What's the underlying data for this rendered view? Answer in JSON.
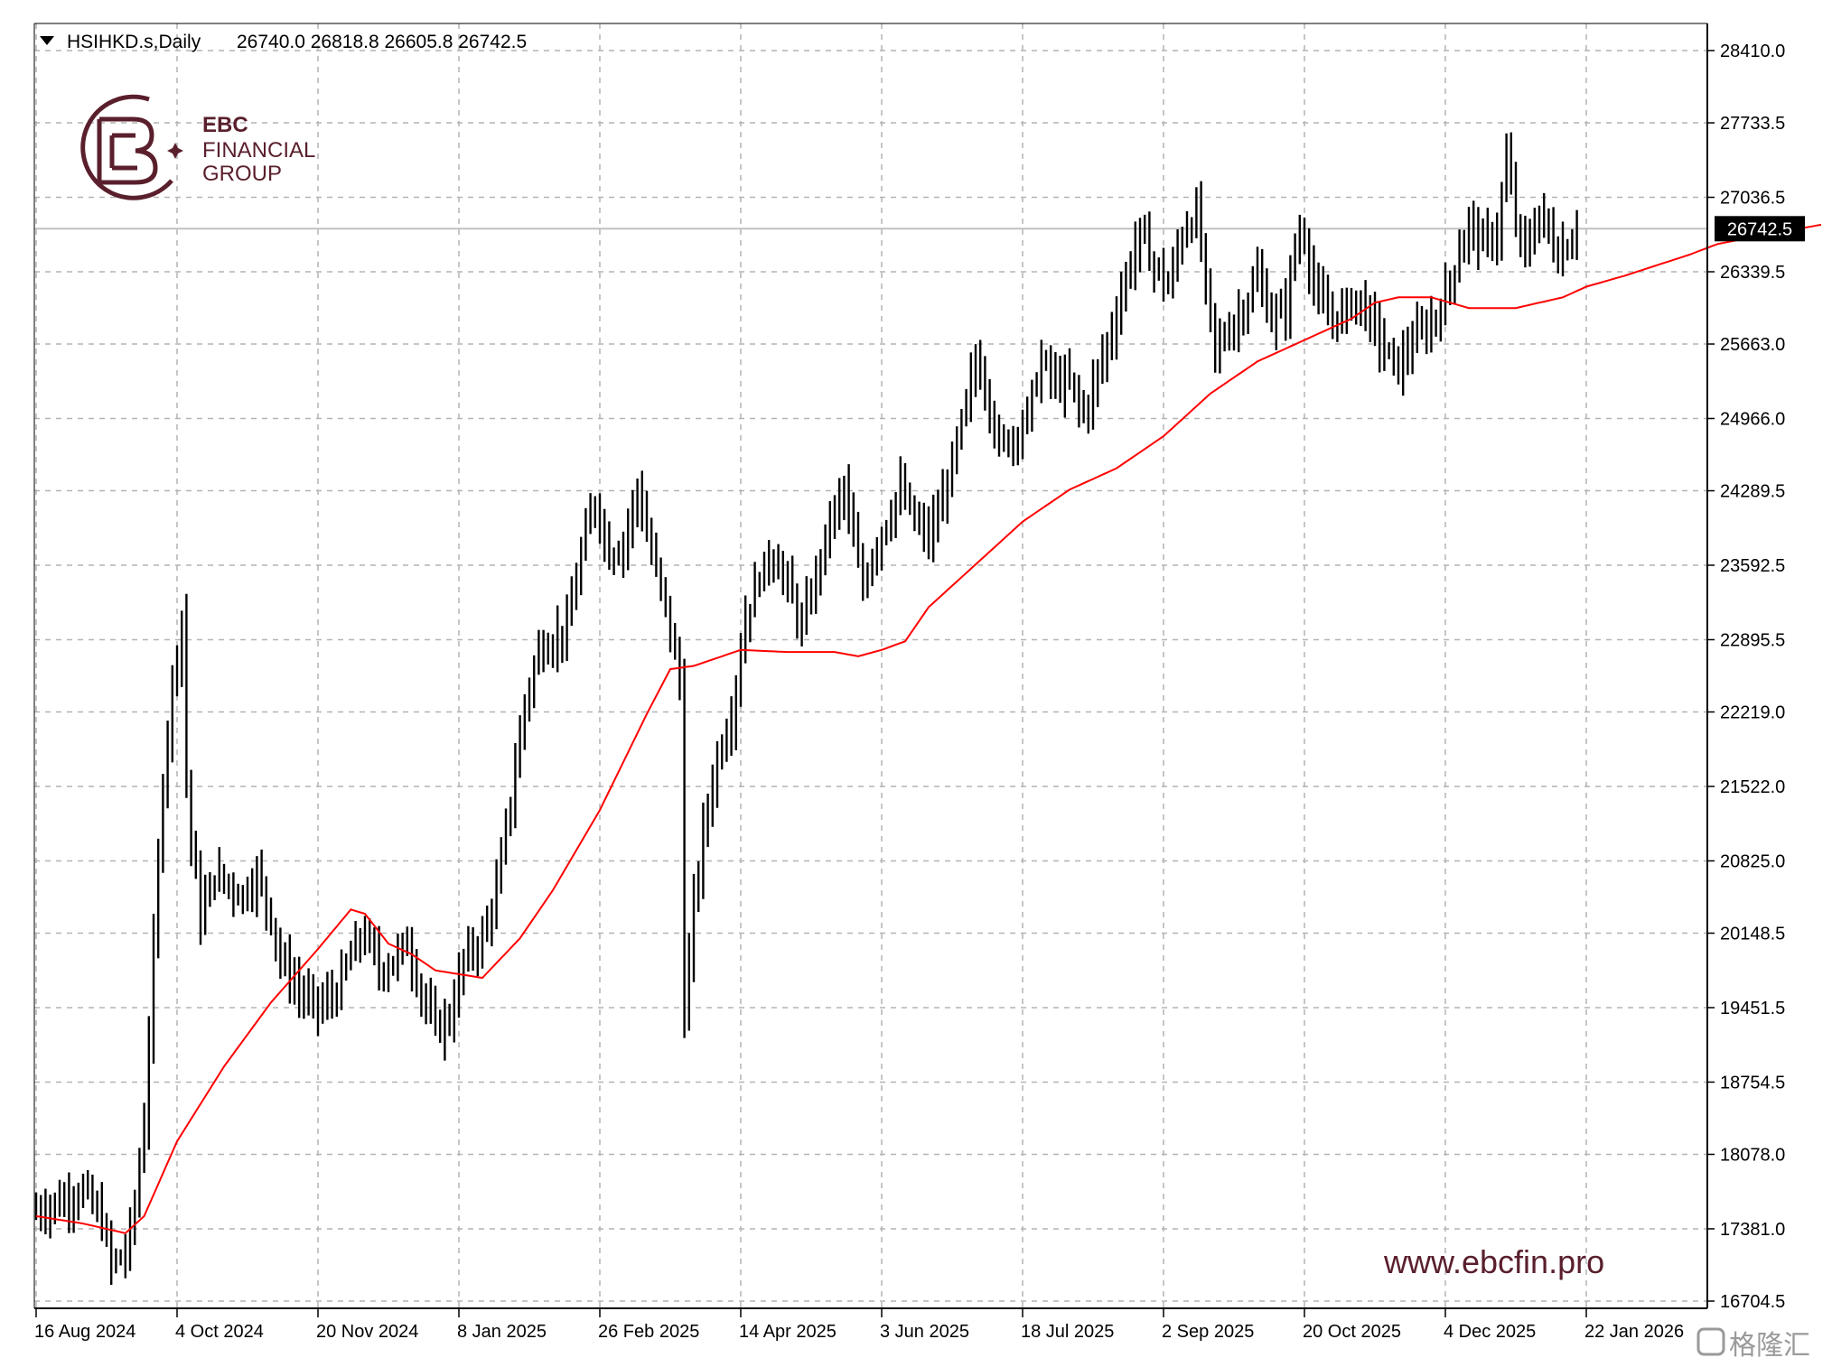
{
  "header": {
    "symbol": "HSIHKD.s,Daily",
    "ohlc": "26740.0 26818.8 26605.8 26742.5"
  },
  "logo": {
    "line1": "EBC",
    "line2": "FINANCIAL",
    "line3": "GROUP"
  },
  "website": "www.ebcfin.pro",
  "watermark": "格隆汇",
  "colors": {
    "bars": "#000000",
    "ma": "#ff0000",
    "grid": "#b4b4b4",
    "price_line": "#c0c0c0",
    "brand": "#5a1f2c"
  },
  "chart_data": {
    "type": "ohlc",
    "current_price": 26742.5,
    "current_price_label": "26742.5",
    "y_ticks": [
      "28410.0",
      "27733.5",
      "27036.5",
      "26339.5",
      "25663.0",
      "24966.0",
      "24289.5",
      "23592.5",
      "22895.5",
      "22219.0",
      "21522.0",
      "20825.0",
      "20148.5",
      "19451.5",
      "18754.5",
      "18078.0",
      "17381.0",
      "16704.5"
    ],
    "x_ticks": [
      "16 Aug 2024",
      "4 Oct 2024",
      "20 Nov 2024",
      "8 Jan 2025",
      "26 Feb 2025",
      "14 Apr 2025",
      "3 Jun 2025",
      "18 Jul 2025",
      "2 Sep 2025",
      "20 Oct 2025",
      "4 Dec 2025",
      "22 Jan 2026"
    ],
    "ylim": [
      16600,
      28480
    ],
    "bars_per_x_tick": 30,
    "path_keypoints": [
      [
        0,
        17550
      ],
      [
        6,
        17650
      ],
      [
        10,
        17750
      ],
      [
        14,
        17450
      ],
      [
        16,
        17050
      ],
      [
        19,
        17150
      ],
      [
        21,
        17600
      ],
      [
        23,
        18400
      ],
      [
        25,
        20000
      ],
      [
        27,
        21600
      ],
      [
        29,
        22500
      ],
      [
        31,
        23100
      ],
      [
        32,
        21600
      ],
      [
        33,
        21000
      ],
      [
        35,
        20300
      ],
      [
        38,
        20700
      ],
      [
        41,
        20600
      ],
      [
        44,
        20500
      ],
      [
        47,
        20700
      ],
      [
        50,
        20300
      ],
      [
        52,
        19900
      ],
      [
        56,
        19600
      ],
      [
        60,
        19450
      ],
      [
        64,
        19600
      ],
      [
        67,
        19950
      ],
      [
        70,
        20150
      ],
      [
        73,
        19800
      ],
      [
        76,
        19900
      ],
      [
        79,
        20050
      ],
      [
        82,
        19600
      ],
      [
        85,
        19250
      ],
      [
        88,
        19350
      ],
      [
        91,
        19900
      ],
      [
        95,
        20100
      ],
      [
        98,
        20550
      ],
      [
        101,
        21400
      ],
      [
        104,
        22300
      ],
      [
        107,
        22800
      ],
      [
        110,
        22900
      ],
      [
        113,
        23000
      ],
      [
        116,
        23700
      ],
      [
        119,
        24200
      ],
      [
        122,
        23700
      ],
      [
        125,
        23800
      ],
      [
        128,
        24300
      ],
      [
        131,
        23700
      ],
      [
        134,
        23200
      ],
      [
        137,
        22500
      ],
      [
        138,
        19400
      ],
      [
        140,
        20400
      ],
      [
        142,
        21100
      ],
      [
        145,
        21800
      ],
      [
        148,
        22200
      ],
      [
        151,
        23100
      ],
      [
        154,
        23500
      ],
      [
        157,
        23700
      ],
      [
        160,
        23400
      ],
      [
        163,
        23000
      ],
      [
        166,
        23500
      ],
      [
        169,
        24000
      ],
      [
        172,
        24300
      ],
      [
        174,
        23800
      ],
      [
        176,
        23400
      ],
      [
        178,
        23700
      ],
      [
        181,
        24000
      ],
      [
        184,
        24300
      ],
      [
        187,
        24000
      ],
      [
        190,
        23850
      ],
      [
        193,
        24200
      ],
      [
        197,
        24900
      ],
      [
        200,
        25500
      ],
      [
        202,
        25300
      ],
      [
        205,
        24700
      ],
      [
        208,
        24800
      ],
      [
        211,
        25000
      ],
      [
        214,
        25500
      ],
      [
        217,
        25300
      ],
      [
        220,
        25300
      ],
      [
        223,
        25000
      ],
      [
        226,
        25400
      ],
      [
        229,
        25800
      ],
      [
        232,
        26300
      ],
      [
        235,
        26700
      ],
      [
        238,
        26400
      ],
      [
        241,
        26200
      ],
      [
        244,
        26700
      ],
      [
        247,
        26900
      ],
      [
        249,
        26200
      ],
      [
        251,
        25600
      ],
      [
        254,
        25800
      ],
      [
        257,
        26000
      ],
      [
        260,
        26300
      ],
      [
        263,
        25900
      ],
      [
        266,
        26000
      ],
      [
        268,
        26600
      ],
      [
        270,
        26700
      ],
      [
        272,
        26200
      ],
      [
        275,
        25900
      ],
      [
        278,
        25950
      ],
      [
        281,
        26100
      ],
      [
        284,
        25900
      ],
      [
        287,
        25600
      ],
      [
        290,
        25450
      ],
      [
        293,
        25700
      ],
      [
        296,
        25800
      ],
      [
        299,
        26000
      ],
      [
        302,
        26400
      ],
      [
        305,
        26800
      ],
      [
        308,
        26600
      ],
      [
        311,
        26700
      ],
      [
        313,
        27400
      ],
      [
        315,
        26800
      ],
      [
        317,
        26500
      ],
      [
        320,
        26900
      ],
      [
        322,
        26700
      ],
      [
        324,
        26500
      ],
      [
        326,
        26600
      ],
      [
        328,
        26742.5
      ]
    ],
    "ma_keypoints": [
      [
        0,
        17500
      ],
      [
        10,
        17430
      ],
      [
        14,
        17390
      ],
      [
        19,
        17340
      ],
      [
        23,
        17500
      ],
      [
        30,
        18200
      ],
      [
        40,
        18900
      ],
      [
        50,
        19500
      ],
      [
        60,
        20000
      ],
      [
        67,
        20370
      ],
      [
        70,
        20330
      ],
      [
        75,
        20050
      ],
      [
        80,
        19950
      ],
      [
        85,
        19800
      ],
      [
        95,
        19730
      ],
      [
        103,
        20100
      ],
      [
        110,
        20550
      ],
      [
        120,
        21300
      ],
      [
        130,
        22200
      ],
      [
        135,
        22620
      ],
      [
        140,
        22650
      ],
      [
        150,
        22800
      ],
      [
        160,
        22780
      ],
      [
        170,
        22780
      ],
      [
        175,
        22740
      ],
      [
        180,
        22800
      ],
      [
        185,
        22880
      ],
      [
        190,
        23200
      ],
      [
        200,
        23600
      ],
      [
        210,
        24000
      ],
      [
        220,
        24300
      ],
      [
        230,
        24500
      ],
      [
        240,
        24800
      ],
      [
        250,
        25200
      ],
      [
        260,
        25500
      ],
      [
        270,
        25700
      ],
      [
        280,
        25900
      ],
      [
        285,
        26050
      ],
      [
        290,
        26100
      ],
      [
        297,
        26100
      ],
      [
        305,
        26000
      ],
      [
        315,
        26000
      ],
      [
        325,
        26100
      ],
      [
        330,
        26200
      ],
      [
        338,
        26300
      ],
      [
        345,
        26400
      ],
      [
        352,
        26500
      ],
      [
        358,
        26600
      ],
      [
        364,
        26650
      ],
      [
        370,
        26700
      ],
      [
        380,
        26780
      ]
    ]
  }
}
